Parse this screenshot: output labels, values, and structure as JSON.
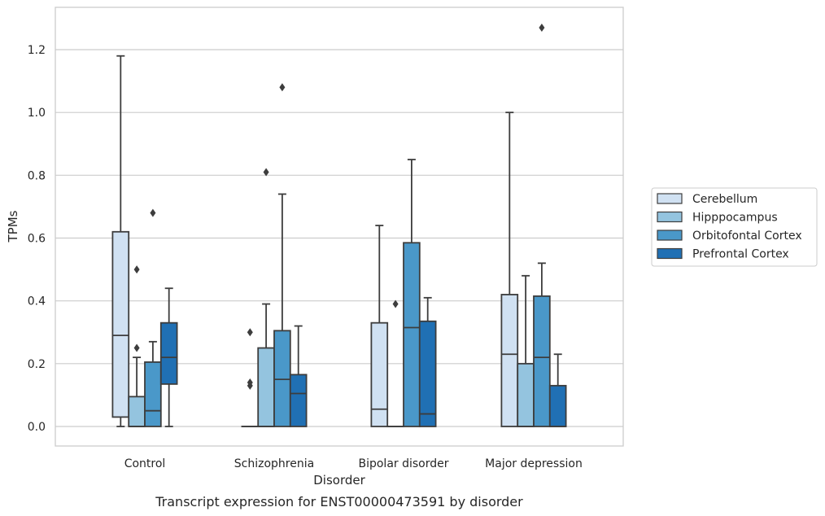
{
  "chart_data": {
    "type": "boxplot",
    "caption": "Transcript expression for ENST00000473591 by disorder",
    "xlabel": "Disorder",
    "ylabel": "TPMs",
    "ylim": [
      -0.06,
      1.34
    ],
    "yticks": [
      0.0,
      0.2,
      0.4,
      0.6,
      0.8,
      1.0,
      1.2
    ],
    "yticklabels": [
      "0.0",
      "0.2",
      "0.4",
      "0.6",
      "0.8",
      "1.0",
      "1.2"
    ],
    "grid": true,
    "legend_position": "right",
    "categories": [
      "Control",
      "Schizophrenia",
      "Bipolar disorder",
      "Major depression"
    ],
    "series": [
      {
        "name": "Cerebellum",
        "color": "#d0e1f2",
        "boxes": [
          {
            "whislo": 0.0,
            "q1": 0.03,
            "med": 0.29,
            "q3": 0.62,
            "whishi": 1.18,
            "fliers": []
          },
          {
            "whislo": 0.0,
            "q1": 0.0,
            "med": 0.0,
            "q3": 0.0,
            "whishi": 0.0,
            "fliers": [
              0.3,
              0.14,
              0.13
            ]
          },
          {
            "whislo": 0.0,
            "q1": 0.0,
            "med": 0.055,
            "q3": 0.33,
            "whishi": 0.64,
            "fliers": []
          },
          {
            "whislo": 0.0,
            "q1": 0.0,
            "med": 0.23,
            "q3": 0.42,
            "whishi": 1.0,
            "fliers": []
          }
        ]
      },
      {
        "name": "Hipppocampus",
        "color": "#94c4df",
        "boxes": [
          {
            "whislo": 0.0,
            "q1": 0.0,
            "med": 0.0,
            "q3": 0.095,
            "whishi": 0.22,
            "fliers": [
              0.5,
              0.25
            ]
          },
          {
            "whislo": 0.0,
            "q1": 0.0,
            "med": 0.0,
            "q3": 0.25,
            "whishi": 0.39,
            "fliers": [
              0.81
            ]
          },
          {
            "whislo": 0.0,
            "q1": 0.0,
            "med": 0.0,
            "q3": 0.0,
            "whishi": 0.0,
            "fliers": [
              0.39
            ]
          },
          {
            "whislo": 0.0,
            "q1": 0.0,
            "med": 0.0,
            "q3": 0.2,
            "whishi": 0.48,
            "fliers": []
          }
        ]
      },
      {
        "name": "Orbitofontal Cortex",
        "color": "#4a98c9",
        "boxes": [
          {
            "whislo": 0.0,
            "q1": 0.0,
            "med": 0.05,
            "q3": 0.205,
            "whishi": 0.27,
            "fliers": [
              0.68
            ]
          },
          {
            "whislo": 0.0,
            "q1": 0.0,
            "med": 0.15,
            "q3": 0.305,
            "whishi": 0.74,
            "fliers": [
              1.08
            ]
          },
          {
            "whislo": 0.0,
            "q1": 0.0,
            "med": 0.315,
            "q3": 0.585,
            "whishi": 0.85,
            "fliers": []
          },
          {
            "whislo": 0.0,
            "q1": 0.0,
            "med": 0.22,
            "q3": 0.415,
            "whishi": 0.52,
            "fliers": [
              1.27
            ]
          }
        ]
      },
      {
        "name": "Prefrontal Cortex",
        "color": "#2070b4",
        "boxes": [
          {
            "whislo": 0.0,
            "q1": 0.135,
            "med": 0.22,
            "q3": 0.33,
            "whishi": 0.44,
            "fliers": []
          },
          {
            "whislo": 0.0,
            "q1": 0.0,
            "med": 0.105,
            "q3": 0.165,
            "whishi": 0.32,
            "fliers": []
          },
          {
            "whislo": 0.0,
            "q1": 0.0,
            "med": 0.04,
            "q3": 0.335,
            "whishi": 0.41,
            "fliers": []
          },
          {
            "whislo": 0.0,
            "q1": 0.0,
            "med": 0.0,
            "q3": 0.13,
            "whishi": 0.23,
            "fliers": []
          }
        ]
      }
    ]
  }
}
